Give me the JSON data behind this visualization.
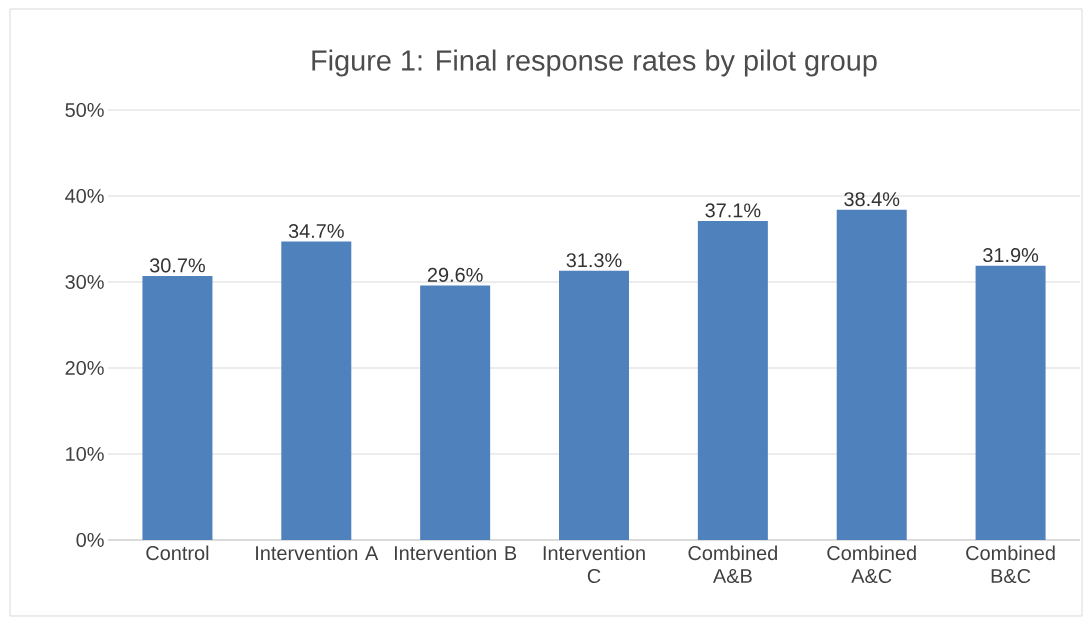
{
  "chart_data": {
    "type": "bar",
    "title": "Figure 1: Final response rates by pilot group",
    "categories": [
      "Control",
      "Intervention A",
      "Intervention B",
      "Intervention C",
      "Combined A&B",
      "Combined A&C",
      "Combined B&C"
    ],
    "values": [
      30.7,
      34.7,
      29.6,
      31.3,
      37.1,
      38.4,
      31.9
    ],
    "value_labels": [
      "30.7%",
      "34.7%",
      "29.6%",
      "31.3%",
      "37.1%",
      "38.4%",
      "31.9%"
    ],
    "color": "#4f81bd",
    "ylim": [
      0,
      50
    ],
    "yticks": [
      {
        "value": 0,
        "label": "0%"
      },
      {
        "value": 10,
        "label": "10%"
      },
      {
        "value": 20,
        "label": "20%"
      },
      {
        "value": 30,
        "label": "30%"
      },
      {
        "value": 40,
        "label": "40%"
      },
      {
        "value": 50,
        "label": "50%"
      }
    ],
    "grid": "y"
  }
}
